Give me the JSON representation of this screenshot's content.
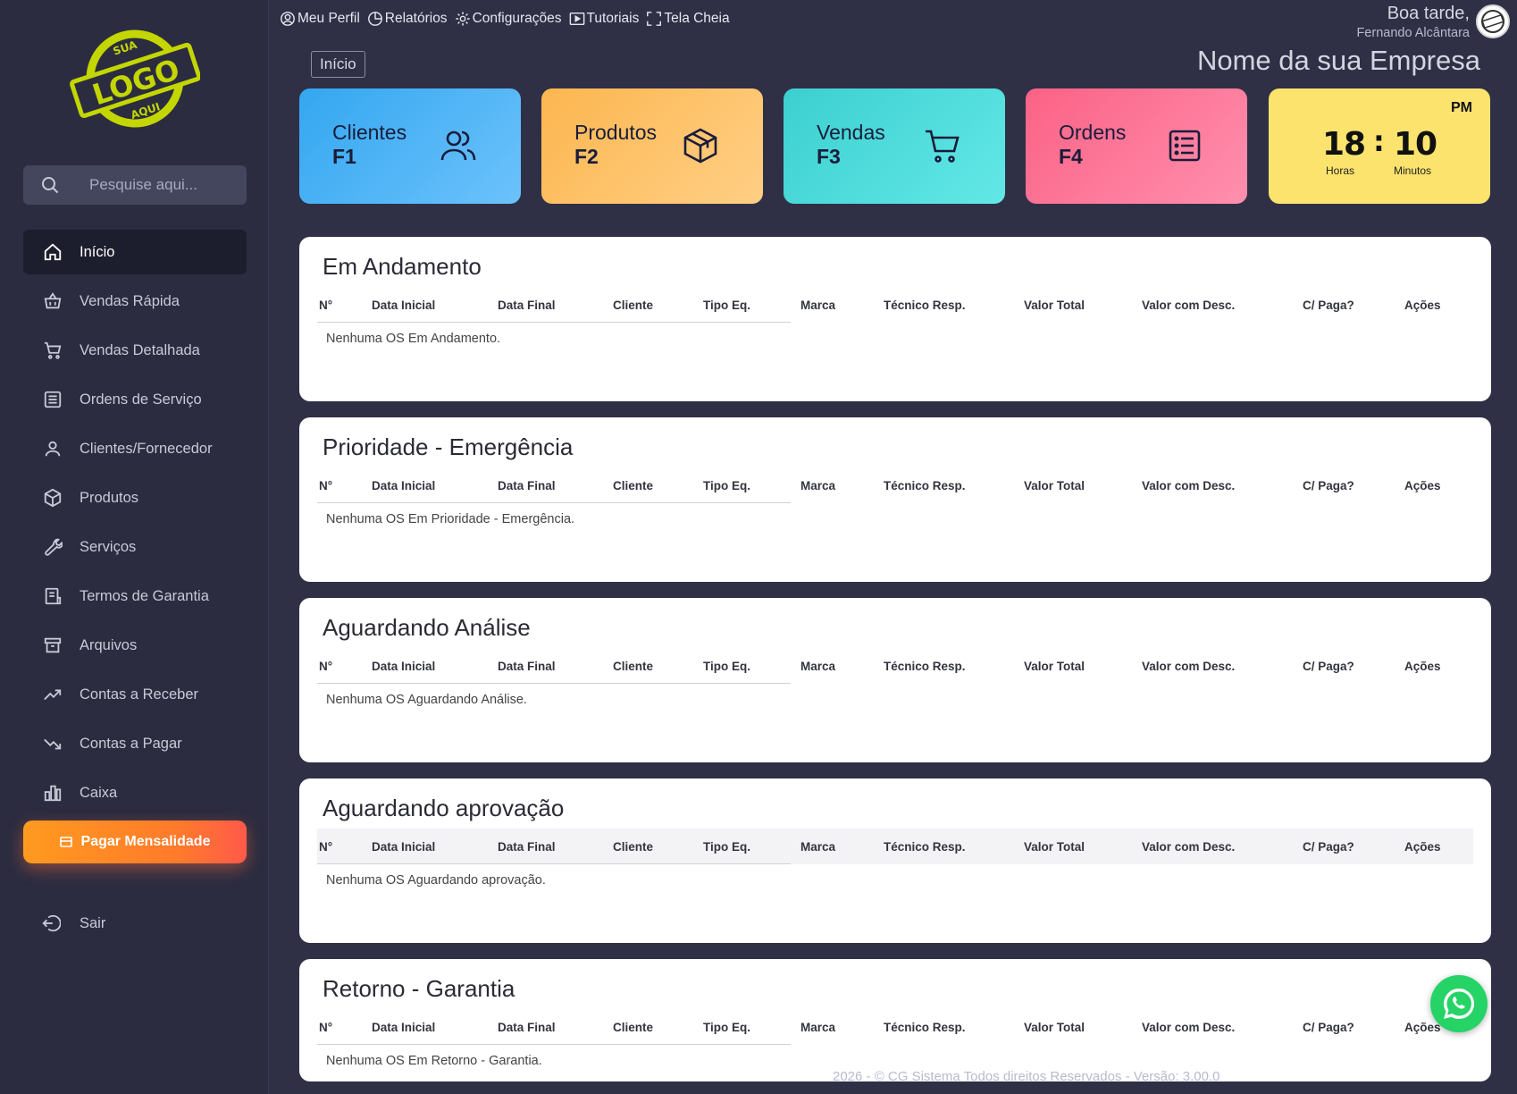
{
  "logo": {
    "top": "SUA",
    "main": "LOGO",
    "bottom": "AQUI",
    "color": "#c3d600"
  },
  "search": {
    "placeholder": "Pesquise aqui..."
  },
  "sidebar": {
    "items": [
      {
        "label": "Início",
        "icon": "home-icon",
        "active": true
      },
      {
        "label": "Vendas Rápida",
        "icon": "basket-icon"
      },
      {
        "label": "Vendas Detalhada",
        "icon": "cart-icon"
      },
      {
        "label": "Ordens de Serviço",
        "icon": "list-icon"
      },
      {
        "label": "Clientes/Fornecedor",
        "icon": "user-icon"
      },
      {
        "label": "Produtos",
        "icon": "box-icon"
      },
      {
        "label": "Serviços",
        "icon": "wrench-icon"
      },
      {
        "label": "Termos de Garantia",
        "icon": "document-icon"
      },
      {
        "label": "Arquivos",
        "icon": "archive-icon"
      },
      {
        "label": "Contas a Receber",
        "icon": "trend-up-icon"
      },
      {
        "label": "Contas a Pagar",
        "icon": "trend-down-icon"
      },
      {
        "label": "Caixa",
        "icon": "bar-chart-icon"
      }
    ],
    "pay_label": "Pagar Mensalidade",
    "logout_label": "Sair"
  },
  "topnav": {
    "profile": "Meu Perfil",
    "reports": "Relatórios",
    "settings": "Configurações",
    "tutorials": "Tutoriais",
    "fullscreen": "Tela Cheia"
  },
  "header": {
    "greeting": "Boa tarde,",
    "user": "Fernando Alcântara",
    "breadcrumb": "Início",
    "company": "Nome da sua Empresa"
  },
  "cards": [
    {
      "label": "Clientes",
      "key": "F1",
      "icon": "users-icon",
      "color": "#34a7f0"
    },
    {
      "label": "Produtos",
      "key": "F2",
      "icon": "box-icon",
      "color": "#fcb64f"
    },
    {
      "label": "Vendas",
      "key": "F3",
      "icon": "cart-icon",
      "color": "#3ccfd0"
    },
    {
      "label": "Ordens",
      "key": "F4",
      "icon": "list-icon",
      "color": "#fb6285"
    }
  ],
  "clock": {
    "period": "PM",
    "hours": "18",
    "minutes": "10",
    "hours_label": "Horas",
    "minutes_label": "Minutos",
    "color": "#fbe36e"
  },
  "columns": [
    "N°",
    "Data Inicial",
    "Data Final",
    "Cliente",
    "Tipo Eq.",
    "Marca",
    "Técnico Resp.",
    "Valor Total",
    "Valor com Desc.",
    "C/ Paga?",
    "Ações"
  ],
  "panels": [
    {
      "title": "Em Andamento",
      "empty": "Nenhuma OS Em Andamento."
    },
    {
      "title": "Prioridade - Emergência",
      "empty": "Nenhuma OS Em Prioridade - Emergência."
    },
    {
      "title": "Aguardando Análise",
      "empty": "Nenhuma OS Aguardando Análise."
    },
    {
      "title": "Aguardando aprovação",
      "empty": "Nenhuma OS Aguardando aprovação."
    },
    {
      "title": "Retorno - Garantia",
      "empty": "Nenhuma OS Em Retorno - Garantia."
    }
  ],
  "footer": "2026 - © CG Sistema Todos direitos Reservados - Versão: 3.00.0"
}
